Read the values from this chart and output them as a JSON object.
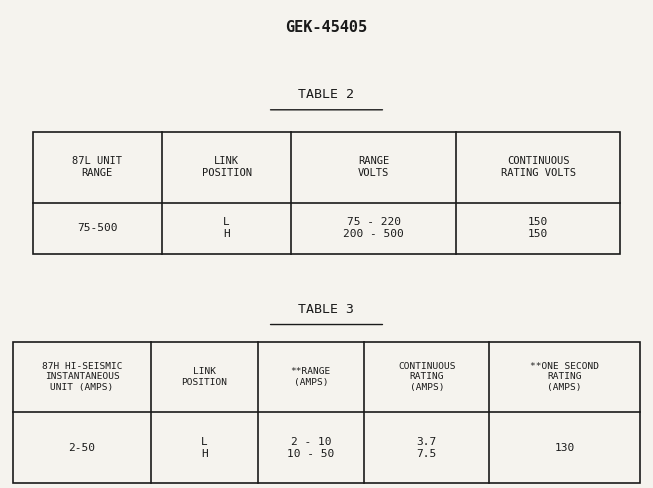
{
  "title": "GEK-45405",
  "title_fontsize": 11,
  "bg_color": "#f5f3ee",
  "font_family": "monospace",
  "table2_title": "TABLE 2",
  "table2_headers": [
    "87L UNIT\nRANGE",
    "LINK\nPOSITION",
    "RANGE\nVOLTS",
    "CONTINUOUS\nRATING VOLTS"
  ],
  "table2_row": [
    "75-500",
    "L\nH",
    "75 - 220\n200 - 500",
    "150\n150"
  ],
  "table3_title": "TABLE 3",
  "table3_headers": [
    "87H HI-SEISMIC\nINSTANTANEOUS\nUNIT (AMPS)",
    "LINK\nPOSITION",
    "**RANGE\n(AMPS)",
    "CONTINUOUS\nRATING\n(AMPS)",
    "**ONE SECOND\nRATING\n(AMPS)"
  ],
  "table3_row": [
    "2-50",
    "L\nH",
    "2 - 10\n10 - 50",
    "3.7\n7.5",
    "130"
  ],
  "text_color": "#1a1a1a"
}
